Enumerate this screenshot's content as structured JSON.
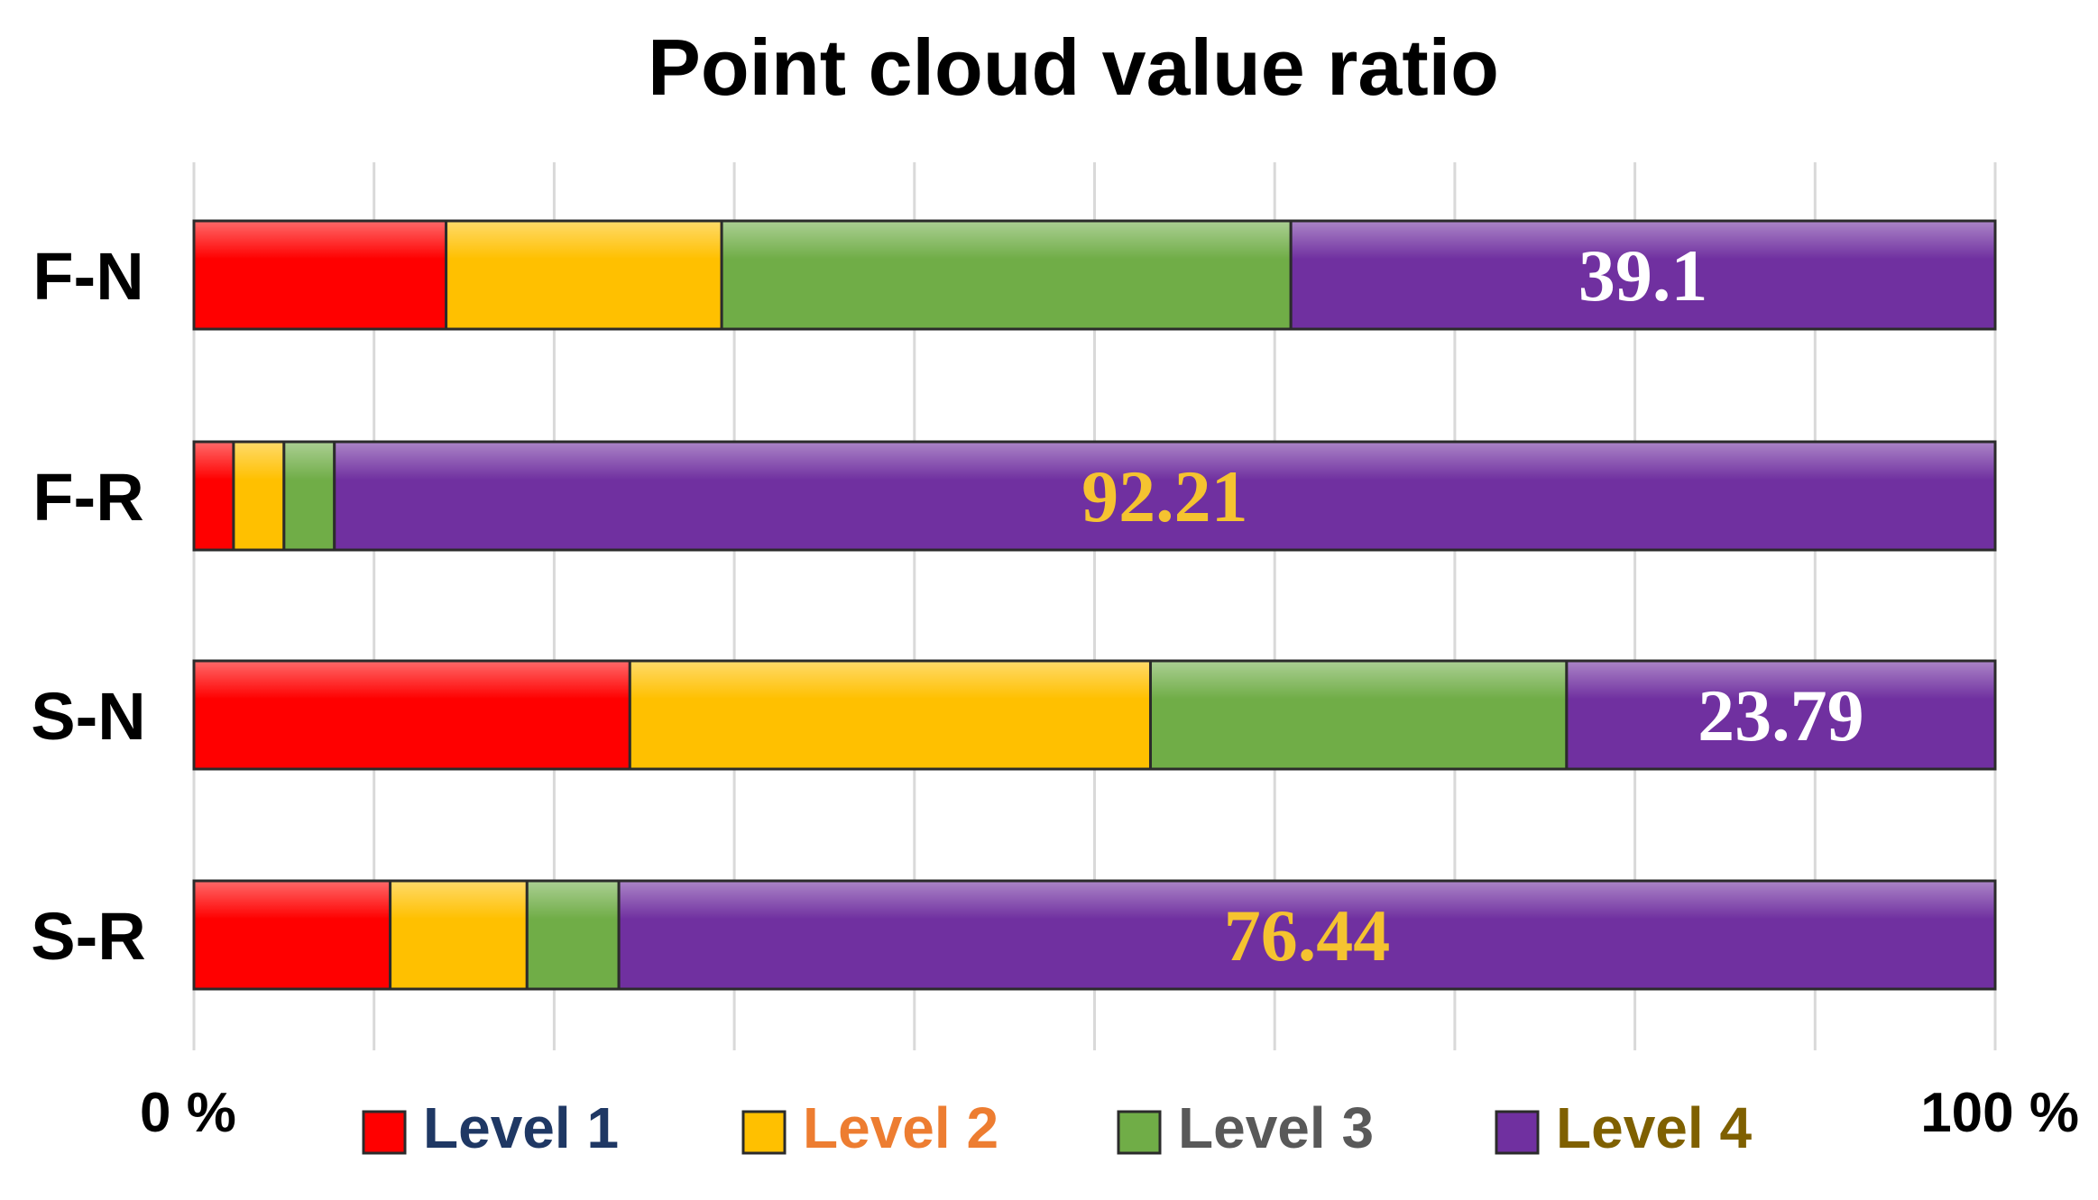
{
  "chart_data": {
    "type": "bar",
    "orientation": "horizontal",
    "stacked": true,
    "normalized": true,
    "title": "Point cloud value ratio",
    "categories": [
      "F-N",
      "F-R",
      "S-N",
      "S-R"
    ],
    "series": [
      {
        "name": "Level 1",
        "color": "#ff0000",
        "legend_text_color": "#1f3864",
        "values": [
          14.0,
          2.2,
          24.2,
          10.9
        ]
      },
      {
        "name": "Level 2",
        "color": "#ffc000",
        "legend_text_color": "#ed7d31",
        "values": [
          15.3,
          2.8,
          28.9,
          7.6
        ]
      },
      {
        "name": "Level 3",
        "color": "#70ad47",
        "legend_text_color": "#595959",
        "values": [
          31.6,
          2.8,
          23.1,
          5.1
        ]
      },
      {
        "name": "Level 4",
        "color": "#7030a0",
        "legend_text_color": "#7f6000",
        "values": [
          39.1,
          92.21,
          23.79,
          76.44
        ]
      }
    ],
    "data_labels": [
      {
        "category": "F-N",
        "series": "Level 4",
        "text": "39.1",
        "color": "#ffffff"
      },
      {
        "category": "F-R",
        "series": "Level 4",
        "text": "92.21",
        "color": "#f5c330"
      },
      {
        "category": "S-N",
        "series": "Level 4",
        "text": "23.79",
        "color": "#ffffff"
      },
      {
        "category": "S-R",
        "series": "Level 4",
        "text": "76.44",
        "color": "#f5c330"
      }
    ],
    "xlim": [
      0,
      100
    ],
    "axis_min_label": "0 %",
    "axis_max_label": "100 %",
    "grid": true,
    "grid_divisions": 10,
    "legend_position": "bottom"
  }
}
